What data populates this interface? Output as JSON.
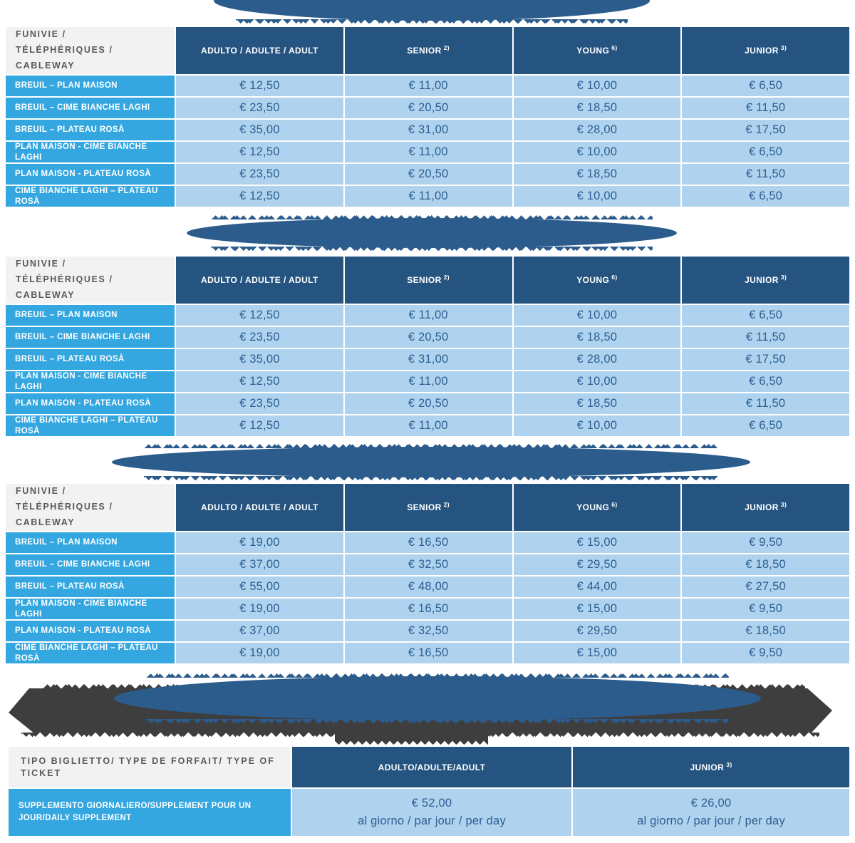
{
  "colors": {
    "header_blue": "#255481",
    "banner_blue": "#2C5C8C",
    "row_label_blue": "#35A7E0",
    "value_cell_blue": "#AFD3EE",
    "corner_bg": "#F2F2F2",
    "corner_text": "#595959",
    "price_text": "#2C5E91",
    "blob_gray": "#3E3E3E"
  },
  "banners": [
    {
      "name": "section-banner-1",
      "legible": false
    },
    {
      "name": "section-banner-2",
      "legible": false
    },
    {
      "name": "section-banner-3",
      "legible": false
    },
    {
      "name": "footnote-banner",
      "legible": false
    }
  ],
  "price_tables": [
    {
      "corner_header": "FUNIVIE / TÉLÉPHÉRIQUES / CABLEWAY",
      "columns": [
        {
          "label": "ADULTO / ADULTE / ADULT",
          "sup": ""
        },
        {
          "label": "SENIOR",
          "sup": "2)"
        },
        {
          "label": "YOUNG",
          "sup": "6)"
        },
        {
          "label": "JUNIOR",
          "sup": "3)"
        }
      ],
      "rows": [
        {
          "label": "BREUIL – PLAN MAISON",
          "values": [
            "€ 12,50",
            "€ 11,00",
            "€ 10,00",
            "€ 6,50"
          ]
        },
        {
          "label": "BREUIL – CIME BIANCHE LAGHI",
          "values": [
            "€ 23,50",
            "€ 20,50",
            "€ 18,50",
            "€ 11,50"
          ]
        },
        {
          "label": "BREUIL – PLATEAU ROSÀ",
          "values": [
            "€ 35,00",
            "€ 31,00",
            "€ 28,00",
            "€ 17,50"
          ]
        },
        {
          "label": "PLAN MAISON - CIME BIANCHE LAGHI",
          "values": [
            "€ 12,50",
            "€ 11,00",
            "€ 10,00",
            "€ 6,50"
          ]
        },
        {
          "label": "PLAN MAISON - PLATEAU ROSÀ",
          "values": [
            "€ 23,50",
            "€ 20,50",
            "€ 18,50",
            "€ 11,50"
          ]
        },
        {
          "label": "CIME BIANCHE LAGHI – PLATEAU ROSÀ",
          "values": [
            "€ 12,50",
            "€ 11,00",
            "€ 10,00",
            "€ 6,50"
          ]
        }
      ]
    },
    {
      "corner_header": "FUNIVIE / TÉLÉPHÉRIQUES / CABLEWAY",
      "columns": [
        {
          "label": "ADULTO / ADULTE / ADULT",
          "sup": ""
        },
        {
          "label": "SENIOR",
          "sup": "2)"
        },
        {
          "label": "YOUNG",
          "sup": "6)"
        },
        {
          "label": "JUNIOR",
          "sup": "3)"
        }
      ],
      "rows": [
        {
          "label": "BREUIL – PLAN MAISON",
          "values": [
            "€ 12,50",
            "€ 11,00",
            "€ 10,00",
            "€ 6,50"
          ]
        },
        {
          "label": "BREUIL – CIME BIANCHE LAGHI",
          "values": [
            "€ 23,50",
            "€ 20,50",
            "€ 18,50",
            "€ 11,50"
          ]
        },
        {
          "label": "BREUIL – PLATEAU ROSÀ",
          "values": [
            "€ 35,00",
            "€ 31,00",
            "€ 28,00",
            "€ 17,50"
          ]
        },
        {
          "label": "PLAN MAISON - CIME BIANCHE LAGHI",
          "values": [
            "€ 12,50",
            "€ 11,00",
            "€ 10,00",
            "€ 6,50"
          ]
        },
        {
          "label": "PLAN MAISON - PLATEAU ROSÀ",
          "values": [
            "€ 23,50",
            "€ 20,50",
            "€ 18,50",
            "€ 11,50"
          ]
        },
        {
          "label": "CIME BIANCHE LAGHI – PLATEAU ROSÀ",
          "values": [
            "€ 12,50",
            "€ 11,00",
            "€ 10,00",
            "€ 6,50"
          ]
        }
      ]
    },
    {
      "corner_header": "FUNIVIE / TÉLÉPHÉRIQUES / CABLEWAY",
      "columns": [
        {
          "label": "ADULTO / ADULTE / ADULT",
          "sup": ""
        },
        {
          "label": "SENIOR",
          "sup": "2)"
        },
        {
          "label": "YOUNG",
          "sup": "6)"
        },
        {
          "label": "JUNIOR",
          "sup": "3)"
        }
      ],
      "rows": [
        {
          "label": "BREUIL – PLAN MAISON",
          "values": [
            "€ 19,00",
            "€ 16,50",
            "€ 15,00",
            "€ 9,50"
          ]
        },
        {
          "label": "BREUIL – CIME BIANCHE LAGHI",
          "values": [
            "€ 37,00",
            "€ 32,50",
            "€ 29,50",
            "€ 18,50"
          ]
        },
        {
          "label": "BREUIL – PLATEAU ROSÀ",
          "values": [
            "€ 55,00",
            "€ 48,00",
            "€ 44,00",
            "€ 27,50"
          ]
        },
        {
          "label": "PLAN MAISON - CIME BIANCHE LAGHI",
          "values": [
            "€ 19,00",
            "€ 16,50",
            "€ 15,00",
            "€ 9,50"
          ]
        },
        {
          "label": "PLAN MAISON - PLATEAU ROSÀ",
          "values": [
            "€ 37,00",
            "€ 32,50",
            "€ 29,50",
            "€ 18,50"
          ]
        },
        {
          "label": "CIME BIANCHE LAGHI – PLATEAU ROSÀ",
          "values": [
            "€ 19,00",
            "€ 16,50",
            "€ 15,00",
            "€ 9,50"
          ]
        }
      ]
    }
  ],
  "supplement_table": {
    "corner_header": "TIPO BIGLIETTO/ TYPE DE FORFAIT/ TYPE OF TICKET",
    "columns": [
      {
        "label": "ADULTO/ADULTE/ADULT",
        "sup": ""
      },
      {
        "label": "JUNIOR",
        "sup": "3)"
      }
    ],
    "row": {
      "label": "SUPPLEMENTO GIORNALIERO/SUPPLEMENT POUR UN JOUR/DAILY SUPPLEMENT",
      "values": [
        {
          "price": "€ 52,00",
          "per": "al giorno / par jour / per day"
        },
        {
          "price": "€ 26,00",
          "per": "al giorno / par jour / per day"
        }
      ]
    }
  }
}
